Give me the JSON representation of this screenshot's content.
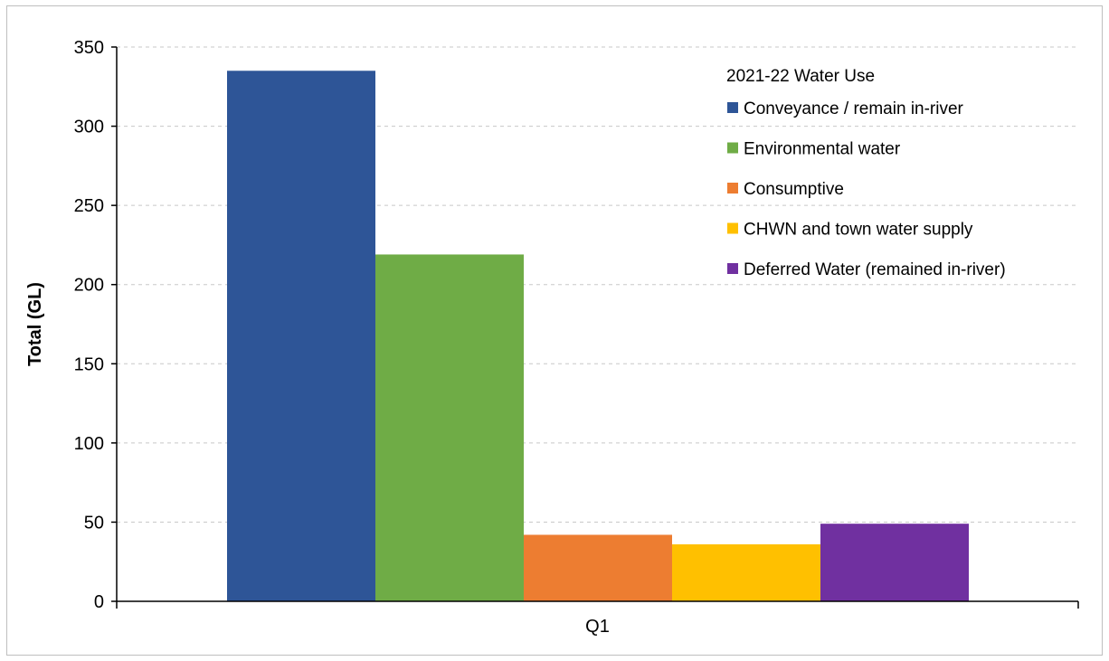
{
  "chart_data": {
    "type": "bar",
    "categories": [
      "Q1"
    ],
    "series": [
      {
        "name": "Conveyance / remain in-river",
        "values": [
          335
        ],
        "color": "#2E5597"
      },
      {
        "name": "Environmental water",
        "values": [
          219
        ],
        "color": "#6FAC46"
      },
      {
        "name": "Consumptive",
        "values": [
          42
        ],
        "color": "#ED7D31"
      },
      {
        "name": "CHWN and town water supply",
        "values": [
          36
        ],
        "color": "#FFC000"
      },
      {
        "name": "Deferred Water (remained in-river)",
        "values": [
          49
        ],
        "color": "#7030A0"
      }
    ],
    "title": "",
    "xlabel": "",
    "ylabel": "Total (GL)",
    "ylim": [
      0,
      350
    ],
    "yticks": [
      0,
      50,
      100,
      150,
      200,
      250,
      300,
      350
    ],
    "grid": true,
    "legend_title": "2021-22 Water Use",
    "legend_position": "top-right"
  }
}
